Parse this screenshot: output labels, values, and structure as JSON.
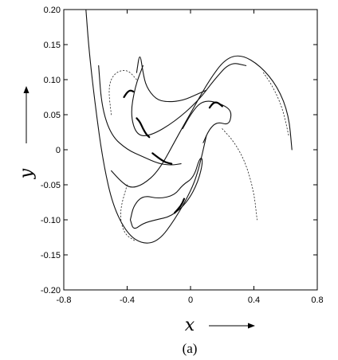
{
  "chart_data": {
    "type": "scatter",
    "title": "",
    "xlabel": "x",
    "ylabel": "y",
    "xlim": [
      -0.8,
      0.8
    ],
    "ylim": [
      -0.2,
      0.2
    ],
    "xticks": [
      -0.8,
      -0.4,
      0,
      0.4,
      0.8
    ],
    "xtick_labels": [
      "-0.8",
      "-0.4",
      "0",
      "0.4",
      "0.8"
    ],
    "yticks": [
      -0.2,
      -0.15,
      -0.1,
      -0.05,
      0,
      0.05,
      0.1,
      0.15,
      0.2
    ],
    "ytick_labels": [
      "-0.20",
      "-0.15",
      "-0.10",
      "-0.05",
      "0",
      "0.05",
      "0.10",
      "0.15",
      "0.20"
    ],
    "grid": false,
    "caption": "(a)",
    "series": [
      {
        "style": "solid",
        "points": [
          [
            -0.66,
            0.2
          ],
          [
            -0.64,
            0.14
          ],
          [
            -0.6,
            0.06
          ],
          [
            -0.55,
            -0.02
          ],
          [
            -0.49,
            -0.08
          ],
          [
            -0.4,
            -0.12
          ],
          [
            -0.3,
            -0.135
          ],
          [
            -0.2,
            -0.13
          ],
          [
            -0.1,
            -0.1
          ],
          [
            0,
            -0.06
          ],
          [
            0.05,
            -0.03
          ],
          [
            0.1,
            0.02
          ]
        ]
      },
      {
        "style": "solid",
        "points": [
          [
            -0.5,
            -0.03
          ],
          [
            -0.44,
            -0.045
          ],
          [
            -0.38,
            -0.055
          ],
          [
            -0.3,
            -0.05
          ],
          [
            -0.2,
            -0.03
          ],
          [
            -0.08,
            0.02
          ],
          [
            0.02,
            0.06
          ],
          [
            0.12,
            0.1
          ],
          [
            0.22,
            0.13
          ],
          [
            0.32,
            0.136
          ],
          [
            0.44,
            0.12
          ],
          [
            0.55,
            0.09
          ],
          [
            0.62,
            0.05
          ],
          [
            0.64,
            0.0
          ]
        ]
      },
      {
        "style": "solid",
        "points": [
          [
            -0.58,
            0.12
          ],
          [
            -0.56,
            0.06
          ],
          [
            -0.5,
            0.02
          ],
          [
            -0.4,
            0.0
          ],
          [
            -0.3,
            -0.01
          ],
          [
            -0.2,
            -0.02
          ],
          [
            -0.12,
            -0.022
          ],
          [
            -0.06,
            -0.02
          ]
        ]
      },
      {
        "style": "solid",
        "points": [
          [
            -0.3,
            0.12
          ],
          [
            -0.35,
            0.09
          ],
          [
            -0.38,
            0.05
          ],
          [
            -0.34,
            0.02
          ],
          [
            -0.25,
            0.02
          ],
          [
            -0.1,
            0.04
          ],
          [
            0.05,
            0.07
          ],
          [
            0.15,
            0.1
          ],
          [
            0.25,
            0.125
          ],
          [
            0.35,
            0.12
          ]
        ]
      },
      {
        "style": "solid",
        "points": [
          [
            -0.34,
            0.11
          ],
          [
            -0.32,
            0.14
          ],
          [
            -0.3,
            0.11
          ],
          [
            -0.28,
            0.09
          ],
          [
            -0.22,
            0.072
          ],
          [
            -0.15,
            0.068
          ],
          [
            -0.05,
            0.07
          ],
          [
            0.05,
            0.08
          ],
          [
            0.1,
            0.085
          ]
        ]
      },
      {
        "style": "solid",
        "points": [
          [
            -0.05,
            0.03
          ],
          [
            0.0,
            0.05
          ],
          [
            0.05,
            0.065
          ],
          [
            0.1,
            0.07
          ],
          [
            0.16,
            0.068
          ],
          [
            0.24,
            0.06
          ],
          [
            0.26,
            0.05
          ],
          [
            0.24,
            0.035
          ],
          [
            0.17,
            0.04
          ],
          [
            0.12,
            0.03
          ],
          [
            0.08,
            0.01
          ]
        ]
      },
      {
        "style": "solid",
        "points": [
          [
            -0.38,
            -0.1
          ],
          [
            -0.36,
            -0.08
          ],
          [
            -0.3,
            -0.065
          ],
          [
            -0.2,
            -0.07
          ],
          [
            -0.1,
            -0.065
          ],
          [
            -0.05,
            -0.05
          ],
          [
            0.02,
            -0.04
          ],
          [
            0.06,
            -0.01
          ],
          [
            0.08,
            -0.015
          ],
          [
            0.05,
            -0.045
          ],
          [
            -0.02,
            -0.075
          ],
          [
            -0.12,
            -0.095
          ],
          [
            -0.22,
            -0.1
          ],
          [
            -0.3,
            -0.105
          ],
          [
            -0.36,
            -0.115
          ],
          [
            -0.38,
            -0.1
          ]
        ]
      },
      {
        "style": "dotted",
        "points": [
          [
            -0.5,
            0.05
          ],
          [
            -0.52,
            0.09
          ],
          [
            -0.48,
            0.11
          ],
          [
            -0.4,
            0.115
          ],
          [
            -0.34,
            0.1
          ]
        ]
      },
      {
        "style": "dotted",
        "points": [
          [
            0.2,
            0.03
          ],
          [
            0.28,
            0.01
          ],
          [
            0.35,
            -0.02
          ],
          [
            0.4,
            -0.06
          ],
          [
            0.42,
            -0.1
          ]
        ]
      },
      {
        "style": "dotted",
        "points": [
          [
            0.46,
            0.11
          ],
          [
            0.52,
            0.09
          ],
          [
            0.58,
            0.06
          ],
          [
            0.62,
            0.02
          ]
        ]
      },
      {
        "style": "dotted",
        "points": [
          [
            -0.4,
            -0.05
          ],
          [
            -0.45,
            -0.09
          ],
          [
            -0.42,
            -0.12
          ],
          [
            -0.35,
            -0.13
          ]
        ]
      },
      {
        "style": "dense",
        "points": [
          [
            -0.34,
            0.045
          ],
          [
            -0.32,
            0.04
          ],
          [
            -0.3,
            0.03
          ],
          [
            -0.28,
            0.022
          ],
          [
            -0.26,
            0.018
          ]
        ]
      },
      {
        "style": "dense",
        "points": [
          [
            -0.42,
            0.075
          ],
          [
            -0.4,
            0.082
          ],
          [
            -0.38,
            0.085
          ],
          [
            -0.36,
            0.083
          ]
        ]
      },
      {
        "style": "dense",
        "points": [
          [
            0.12,
            0.06
          ],
          [
            0.14,
            0.066
          ],
          [
            0.16,
            0.068
          ],
          [
            0.18,
            0.066
          ],
          [
            0.2,
            0.062
          ]
        ]
      },
      {
        "style": "dense",
        "points": [
          [
            -0.24,
            -0.005
          ],
          [
            -0.2,
            -0.012
          ],
          [
            -0.16,
            -0.018
          ],
          [
            -0.12,
            -0.02
          ]
        ]
      },
      {
        "style": "dense",
        "points": [
          [
            -0.04,
            -0.07
          ],
          [
            -0.06,
            -0.08
          ],
          [
            -0.1,
            -0.09
          ]
        ]
      }
    ]
  }
}
